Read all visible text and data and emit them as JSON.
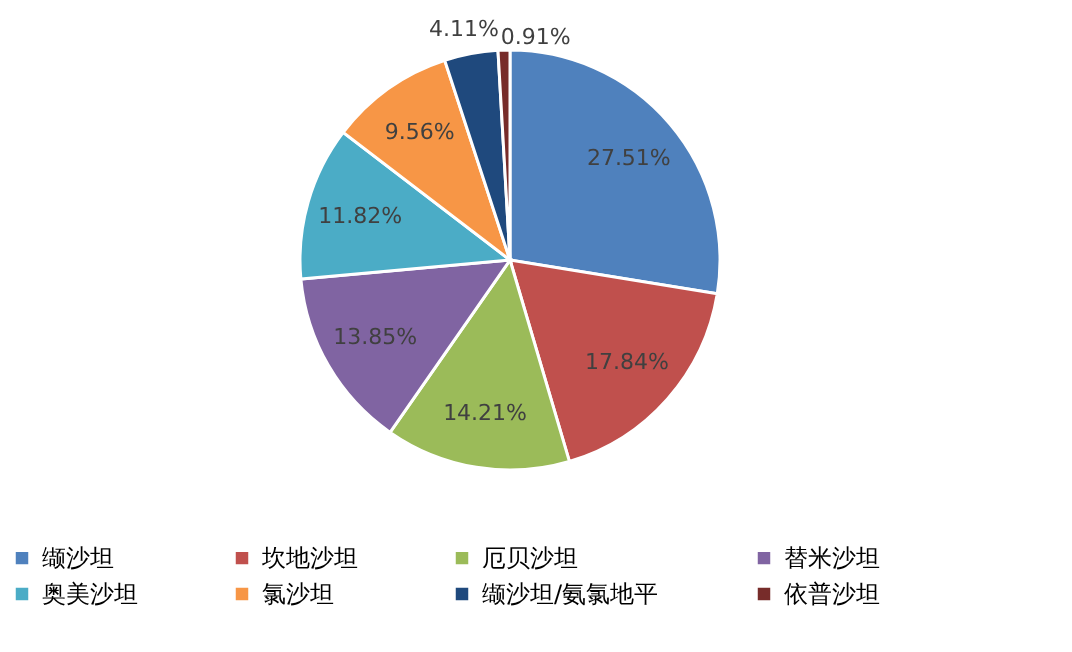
{
  "chart_data": {
    "type": "pie",
    "categories": [
      "缬沙坦",
      "坎地沙坦",
      "厄贝沙坦",
      "替米沙坦",
      "奥美沙坦",
      "氯沙坦",
      "缬沙坦/氨氯地平",
      "依普沙坦"
    ],
    "values": [
      27.51,
      17.84,
      14.21,
      13.85,
      11.82,
      9.56,
      4.11,
      0.91
    ],
    "colors": [
      "#4f81bd",
      "#c0504d",
      "#9bbb59",
      "#8064a2",
      "#4bacc6",
      "#f79646",
      "#1f497d",
      "#772c2a"
    ],
    "value_labels": [
      "27.51%",
      "17.84%",
      "14.21%",
      "13.85%",
      "11.82%",
      "9.56%",
      "4.11%",
      "0.91%"
    ],
    "legend": "bottom"
  }
}
